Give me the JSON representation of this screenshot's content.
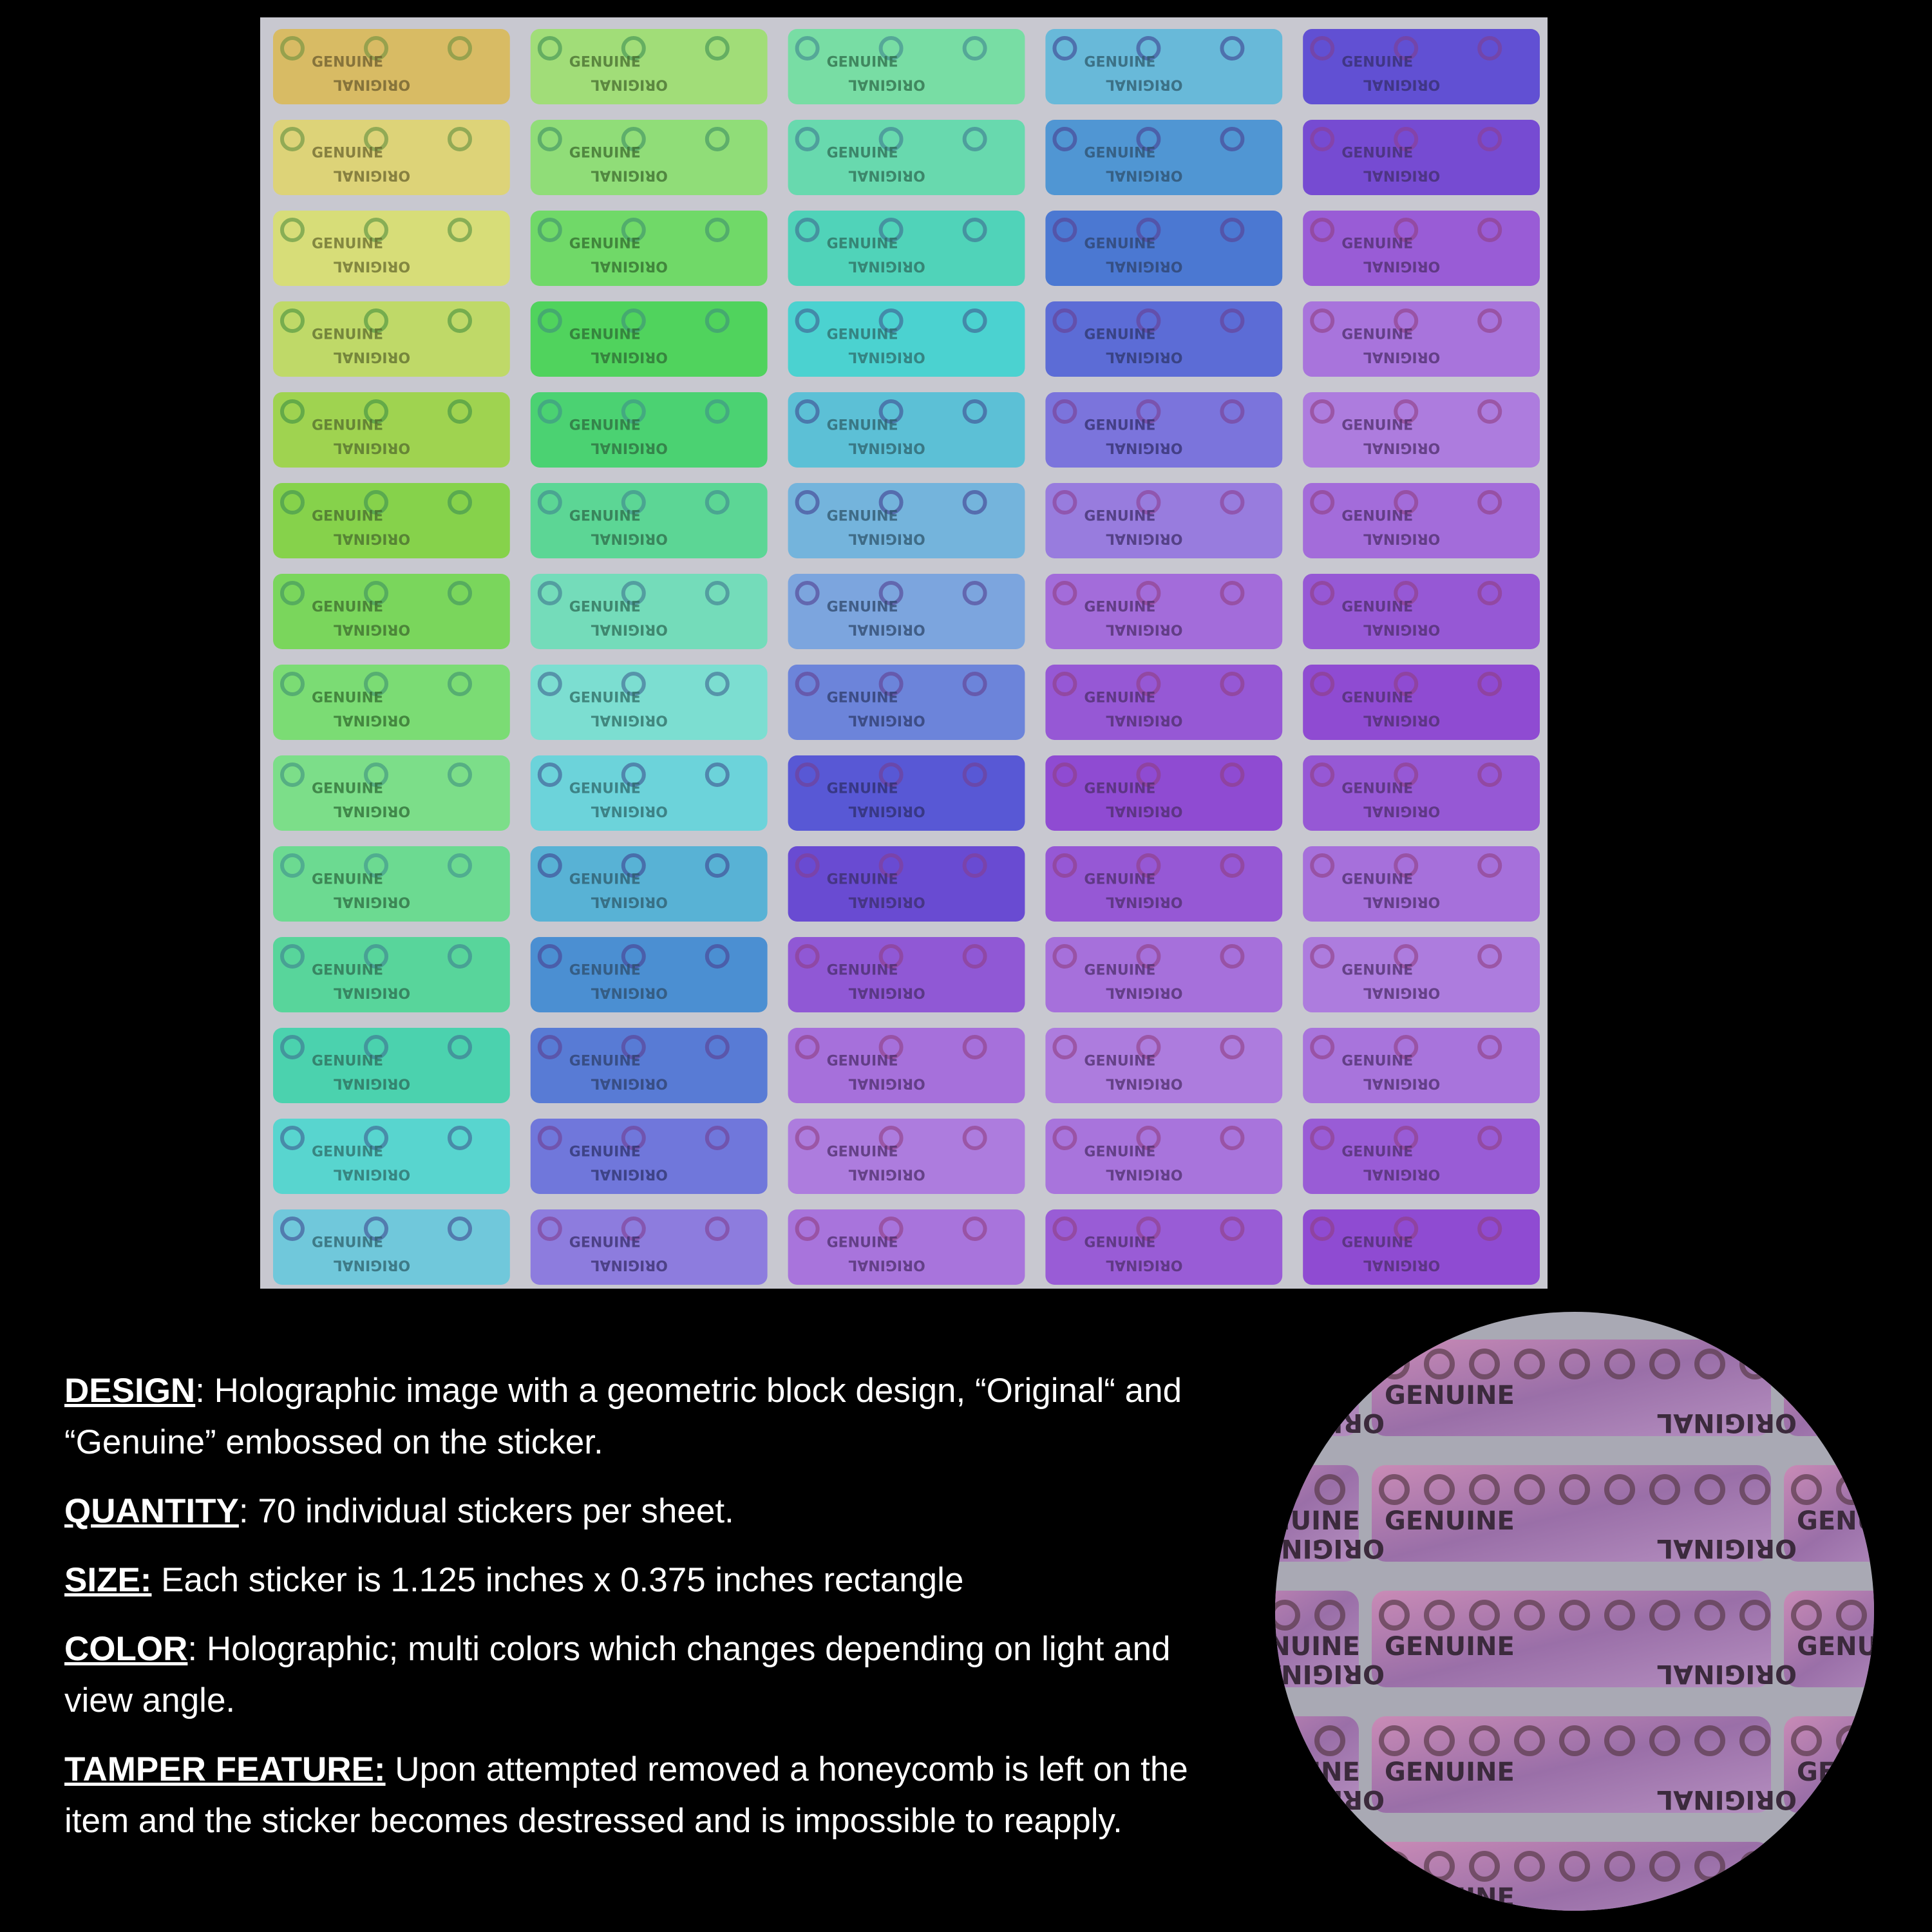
{
  "sticker_words": [
    "GENUINE",
    "ORIGINAL"
  ],
  "features": [
    {
      "label": "DESIGN",
      "text": ": Holographic image with a geometric block design, “Original“ and “Genuine” embossed on the sticker."
    },
    {
      "label": "QUANTITY",
      "text": ": 70 individual stickers per sheet."
    },
    {
      "label": "SIZE:",
      "text": " Each sticker is 1.125 inches x 0.375 inches rectangle"
    },
    {
      "label": "COLOR",
      "text": ": Holographic; multi colors which changes depending on light and view angle."
    },
    {
      "label": "TAMPER FEATURE:",
      "text": " Upon attempted removed a honeycomb is left on the item and the sticker becomes destressed and is impossible to reapply."
    }
  ]
}
